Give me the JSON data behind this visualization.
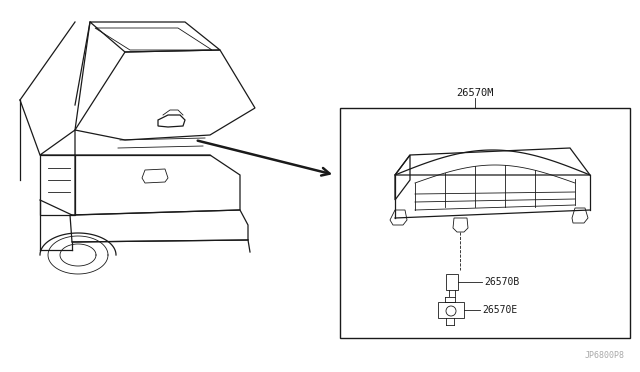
{
  "bg_color": "#ffffff",
  "line_color": "#1a1a1a",
  "label_26570M": "26570M",
  "label_26570B": "26570B",
  "label_26570E": "26570E",
  "watermark": "JP6800P8",
  "title_fontsize": 7.5,
  "label_fontsize": 7.0,
  "watermark_fontsize": 6.0
}
